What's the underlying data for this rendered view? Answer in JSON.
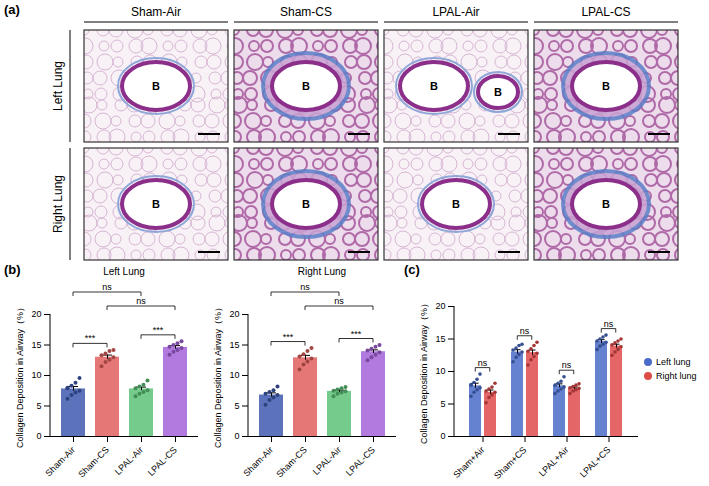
{
  "panel_a": {
    "label": "(a)",
    "columns": [
      "Sham-Air",
      "Sham-CS",
      "LPAL-Air",
      "LPAL-CS"
    ],
    "rows": [
      "Left Lung",
      "Right Lung"
    ],
    "cells": [
      [
        [
          "B"
        ],
        [
          "B"
        ],
        [
          "B",
          "B"
        ],
        [
          "B"
        ]
      ],
      [
        [
          "B"
        ],
        [
          "B"
        ],
        [
          "B"
        ],
        [
          "B"
        ]
      ]
    ]
  },
  "chart_data": [
    {
      "type": "bar",
      "panel": "(b)",
      "title": "Left Lung",
      "y_label": "Collagen Deposition in Airway（%）",
      "categories": [
        "Sham-Air",
        "Sham-CS",
        "LPAL-Air",
        "LPAL-CS"
      ],
      "values": [
        7.8,
        13.0,
        7.8,
        14.6
      ],
      "errors": [
        0.4,
        0.35,
        0.3,
        0.3
      ],
      "points": [
        [
          6.2,
          6.8,
          7.2,
          7.5,
          8.0,
          8.3,
          8.8,
          9.6,
          7.9
        ],
        [
          11.5,
          12.2,
          12.6,
          13.0,
          13.3,
          13.6,
          14.0,
          14.2
        ],
        [
          6.6,
          7.0,
          7.3,
          7.6,
          7.9,
          8.2,
          8.5,
          9.2
        ],
        [
          13.4,
          13.9,
          14.2,
          14.5,
          14.7,
          15.0,
          15.3,
          15.6
        ]
      ],
      "colors": [
        "#3f5bb0",
        "#e0605e",
        "#5cc277",
        "#a463d8"
      ],
      "ylim": [
        0,
        20
      ],
      "yticks": [
        0,
        5,
        10,
        15,
        20
      ],
      "annotations": [
        {
          "from": "Sham-Air",
          "to": "Sham-CS",
          "label": "***"
        },
        {
          "from": "LPAL-Air",
          "to": "LPAL-CS",
          "label": "***"
        },
        {
          "from": "Sham-Air",
          "to": "LPAL-Air",
          "label": "ns"
        },
        {
          "from": "Sham-CS",
          "to": "LPAL-CS",
          "label": "ns"
        }
      ]
    },
    {
      "type": "bar",
      "title": "Right Lung",
      "y_label": "Collagen Deposition in Airway（%）",
      "categories": [
        "Sham-Air",
        "Sham-CS",
        "LPAL-Air",
        "LPAL-CS"
      ],
      "values": [
        6.8,
        12.9,
        7.4,
        13.9
      ],
      "errors": [
        0.35,
        0.4,
        0.2,
        0.3
      ],
      "points": [
        [
          5.2,
          6.0,
          6.4,
          6.8,
          7.0,
          7.3,
          7.6,
          8.2
        ],
        [
          11.0,
          11.8,
          12.3,
          12.8,
          13.1,
          13.5,
          14.0,
          14.5
        ],
        [
          6.6,
          7.0,
          7.2,
          7.4,
          7.5,
          7.7,
          7.9,
          8.1
        ],
        [
          12.5,
          13.0,
          13.4,
          13.8,
          14.1,
          14.4,
          14.7,
          15.0
        ]
      ],
      "colors": [
        "#3f5bb0",
        "#e0605e",
        "#5cc277",
        "#a463d8"
      ],
      "ylim": [
        0,
        20
      ],
      "yticks": [
        0,
        5,
        10,
        15,
        20
      ],
      "annotations": [
        {
          "from": "Sham-Air",
          "to": "Sham-CS",
          "label": "***"
        },
        {
          "from": "LPAL-Air",
          "to": "LPAL-CS",
          "label": "***"
        },
        {
          "from": "Sham-Air",
          "to": "LPAL-Air",
          "label": "ns"
        },
        {
          "from": "Sham-CS",
          "to": "LPAL-CS",
          "label": "ns"
        }
      ]
    },
    {
      "type": "bar",
      "panel": "(c)",
      "y_label": "Collagen Deposition in Airway（%）",
      "categories": [
        "Sham+Air",
        "Sham+CS",
        "LPAL+Air",
        "LPAL+CS"
      ],
      "series": [
        {
          "name": "Left lung",
          "color": "#4a6cc9",
          "values": [
            7.8,
            13.0,
            7.8,
            14.6
          ],
          "errors": [
            0.4,
            0.35,
            0.3,
            0.3
          ],
          "points": [
            [
              6.2,
              6.8,
              7.2,
              7.5,
              8.0,
              8.3,
              8.8,
              9.6,
              7.9
            ],
            [
              11.5,
              12.2,
              12.6,
              13.0,
              13.3,
              13.6,
              14.0,
              14.2
            ],
            [
              6.6,
              7.0,
              7.3,
              7.6,
              7.9,
              8.2,
              8.5,
              9.2
            ],
            [
              13.4,
              13.9,
              14.2,
              14.5,
              14.7,
              15.0,
              15.3,
              15.6
            ]
          ]
        },
        {
          "name": "Right lung",
          "color": "#e04b4b",
          "values": [
            6.8,
            12.9,
            7.4,
            13.9
          ],
          "errors": [
            0.35,
            0.4,
            0.2,
            0.3
          ],
          "points": [
            [
              5.2,
              6.0,
              6.4,
              6.8,
              7.0,
              7.3,
              7.6,
              8.2
            ],
            [
              11.0,
              11.8,
              12.3,
              12.8,
              13.1,
              13.5,
              14.0,
              14.5
            ],
            [
              6.6,
              7.0,
              7.2,
              7.4,
              7.5,
              7.7,
              7.9,
              8.1
            ],
            [
              12.5,
              13.0,
              13.4,
              13.8,
              14.1,
              14.4,
              14.7,
              15.0
            ]
          ]
        }
      ],
      "ylim": [
        0,
        20
      ],
      "yticks": [
        0,
        5,
        10,
        15,
        20
      ],
      "legend": "right",
      "annotations": [
        {
          "category": "Sham+Air",
          "label": "ns"
        },
        {
          "category": "Sham+CS",
          "label": "ns"
        },
        {
          "category": "LPAL+Air",
          "label": "ns"
        },
        {
          "category": "LPAL+CS",
          "label": "ns"
        }
      ]
    }
  ]
}
